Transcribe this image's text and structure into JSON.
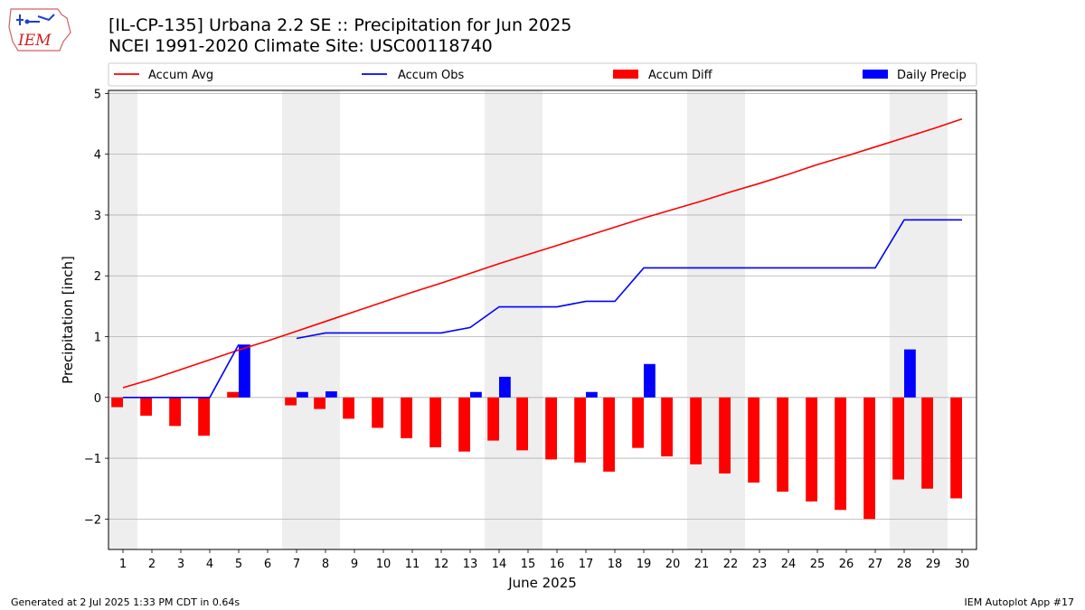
{
  "header": {
    "logo_text": "IEM",
    "title_line1": "[IL-CP-135] Urbana 2.2 SE :: Precipitation for Jun 2025",
    "title_line2": "NCEI 1991-2020 Climate Site: USC00118740"
  },
  "footer": {
    "left": "Generated at 2 Jul 2025 1:33 PM CDT in 0.64s",
    "right": "IEM Autoplot App #17"
  },
  "colors": {
    "avg": "#ff0000",
    "obs": "#0000ff",
    "diff": "#ff0000",
    "daily": "#0000ff",
    "weekend_band": "#eeeeee",
    "grid": "#b0b0b0"
  },
  "chart_data": {
    "type": "bar",
    "xlabel": "June 2025",
    "ylabel": "Precipitation [inch]",
    "ylim": [
      -2.5,
      5.05
    ],
    "yticks": [
      -2,
      -1,
      0,
      1,
      2,
      3,
      4,
      5
    ],
    "ytick_labels": [
      "−2",
      "−1",
      "0",
      "1",
      "2",
      "3",
      "4",
      "5"
    ],
    "x": [
      1,
      2,
      3,
      4,
      5,
      6,
      7,
      8,
      9,
      10,
      11,
      12,
      13,
      14,
      15,
      16,
      17,
      18,
      19,
      20,
      21,
      22,
      23,
      24,
      25,
      26,
      27,
      28,
      29,
      30
    ],
    "weekend_days": [
      1,
      7,
      8,
      14,
      15,
      21,
      22,
      28,
      29
    ],
    "grid": true,
    "legend_position": "top",
    "series": [
      {
        "name": "Accum Avg",
        "kind": "line",
        "values": [
          0.16,
          0.3,
          0.46,
          0.62,
          0.78,
          0.93,
          1.09,
          1.25,
          1.41,
          1.57,
          1.73,
          1.88,
          2.04,
          2.2,
          2.35,
          2.5,
          2.65,
          2.8,
          2.95,
          3.09,
          3.23,
          3.38,
          3.52,
          3.67,
          3.83,
          3.97,
          4.12,
          4.27,
          4.42,
          4.58
        ]
      },
      {
        "name": "Accum Obs",
        "kind": "line",
        "values": [
          0.0,
          0.0,
          0.0,
          0.0,
          0.87,
          null,
          0.97,
          1.06,
          1.06,
          1.06,
          1.06,
          1.06,
          1.15,
          1.49,
          1.49,
          1.49,
          1.58,
          1.58,
          2.13,
          2.13,
          2.13,
          2.13,
          2.13,
          2.13,
          2.13,
          2.13,
          2.13,
          2.92,
          2.92,
          2.92
        ]
      },
      {
        "name": "Accum Diff",
        "kind": "bar",
        "values": [
          -0.16,
          -0.3,
          -0.47,
          -0.63,
          0.09,
          null,
          -0.13,
          -0.19,
          -0.35,
          -0.5,
          -0.67,
          -0.82,
          -0.89,
          -0.71,
          -0.87,
          -1.02,
          -1.07,
          -1.22,
          -0.83,
          -0.97,
          -1.1,
          -1.25,
          -1.4,
          -1.55,
          -1.71,
          -1.85,
          -2.0,
          -1.35,
          -1.5,
          -1.66
        ]
      },
      {
        "name": "Daily Precip",
        "kind": "bar",
        "values": [
          0,
          0,
          0,
          0,
          0.87,
          0,
          0.09,
          0.1,
          0,
          0,
          0,
          0,
          0.09,
          0.34,
          0,
          0,
          0.09,
          0,
          0.55,
          0,
          0,
          0,
          0,
          0,
          0,
          0,
          0,
          0.79,
          0,
          0
        ]
      }
    ]
  }
}
